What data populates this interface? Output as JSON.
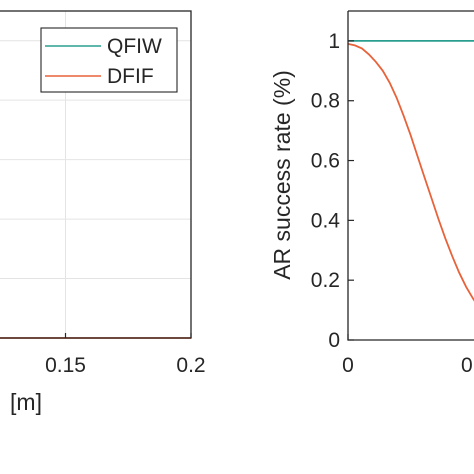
{
  "chart_data": [
    {
      "type": "line",
      "xlabel": "[m]",
      "ylabel": "",
      "xlim": [
        0.1,
        0.2
      ],
      "ylim": [
        0,
        1.1
      ],
      "xticks": [
        0.15,
        0.2
      ],
      "xtick_labels": [
        "0.15",
        "0.2"
      ],
      "grid": true,
      "legend_position": "top-right",
      "series": [
        {
          "name": "QFIW",
          "color": "#2a9d8f",
          "x": [],
          "y": []
        },
        {
          "name": "DFIF",
          "color": "#e8623a",
          "x": [
            0.1,
            0.2
          ],
          "y": [
            0,
            0
          ]
        }
      ]
    },
    {
      "type": "line",
      "xlabel": "",
      "ylabel": "AR success rate (%)",
      "xlim": [
        0,
        0.4
      ],
      "ylim": [
        0,
        1.1
      ],
      "yticks": [
        0,
        0.2,
        0.4,
        0.6,
        0.8,
        1
      ],
      "ytick_labels": [
        "0",
        "0.2",
        "0.4",
        "0.6",
        "0.8",
        "1"
      ],
      "xticks": [
        0
      ],
      "xtick_labels": [
        "0"
      ],
      "grid": false,
      "series": [
        {
          "name": "QFIW",
          "color": "#2a9d8f",
          "x": [
            0,
            0.04,
            0.08,
            0.12,
            0.16,
            0.2,
            0.24,
            0.28,
            0.32,
            0.36,
            0.4
          ],
          "y": [
            1,
            1,
            1,
            1,
            1,
            1,
            1,
            1,
            1,
            1,
            1
          ]
        },
        {
          "name": "DFIF",
          "color": "#e8623a",
          "x": [
            0,
            0.0025,
            0.005,
            0.0075,
            0.01,
            0.0125,
            0.015,
            0.0175,
            0.02,
            0.0225,
            0.025,
            0.0275,
            0.03,
            0.0325,
            0.035,
            0.0375,
            0.04,
            0.0425,
            0.045,
            0.0475,
            0.05,
            0.0525,
            0.055,
            0.0575,
            0.06,
            0.0625,
            0.065,
            0.0675,
            0.07,
            0.0725,
            0.075,
            0.0775,
            0.08,
            0.0825,
            0.085,
            0.0875,
            0.09
          ],
          "y": [
            0.99,
            0.985,
            0.975,
            0.955,
            0.93,
            0.9,
            0.86,
            0.81,
            0.75,
            0.685,
            0.615,
            0.545,
            0.475,
            0.405,
            0.34,
            0.28,
            0.225,
            0.178,
            0.138,
            0.105,
            0.078,
            0.057,
            0.041,
            0.029,
            0.02,
            0.014,
            0.01,
            0.007,
            0.005,
            0.0035,
            0.0025,
            0.0018,
            0.0012,
            0.0008,
            0.0005,
            0.0002,
            0
          ]
        }
      ]
    }
  ]
}
